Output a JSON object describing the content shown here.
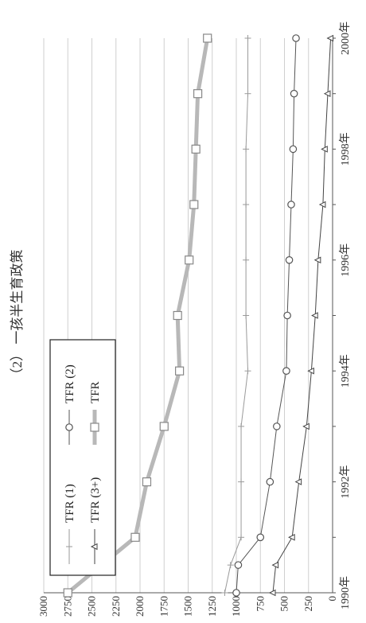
{
  "chart_data": {
    "type": "line",
    "title": "（2） 一孩半生育政策",
    "x": [
      "1990年",
      "1991年",
      "1992年",
      "1993年",
      "1994年",
      "1995年",
      "1996年",
      "1997年",
      "1998年",
      "1999年",
      "2000年"
    ],
    "x_ticks_labeled": [
      "1990年",
      "1992年",
      "1994年",
      "1996年",
      "1998年",
      "2000年"
    ],
    "x_values": [
      1990,
      1991,
      1992,
      1993,
      1994,
      1995,
      1996,
      1997,
      1998,
      1999,
      2000
    ],
    "y_ticks": [
      "0",
      "250",
      "500",
      "750",
      "1000",
      "1250",
      "1500",
      "1750",
      "2000",
      "2250",
      "2500",
      "2750",
      "3000"
    ],
    "ylim": [
      0,
      3000
    ],
    "grid": true,
    "legend_position": "top-left",
    "legend_columns": [
      [
        "TFR (1)",
        "TFR (3+)"
      ],
      [
        "TFR (2)",
        "TFR"
      ]
    ],
    "rotation": "rotated 90 degrees counter-clockwise",
    "series": [
      {
        "name": "TFR (1)",
        "marker": "plus",
        "width": 1,
        "color": "#9a9a9a",
        "x": [
          1990,
          1990.5,
          1991,
          1992,
          1993,
          1994,
          1995,
          1996,
          1997,
          1998,
          1999,
          2000
        ],
        "values": [
          1120,
          1060,
          950,
          950,
          950,
          880,
          900,
          900,
          900,
          900,
          880,
          880
        ]
      },
      {
        "name": "TFR (2)",
        "marker": "circle",
        "width": 1,
        "color": "#555555",
        "x": [
          1990,
          1990.5,
          1991,
          1992,
          1993,
          1994,
          1995,
          1996,
          1997,
          1998,
          1999,
          2000
        ],
        "values": [
          1000,
          980,
          750,
          650,
          580,
          480,
          470,
          450,
          430,
          410,
          400,
          380
        ]
      },
      {
        "name": "TFR (3+)",
        "marker": "triangle",
        "width": 1,
        "color": "#444444",
        "x": [
          1990,
          1990.5,
          1991,
          1992,
          1993,
          1994,
          1995,
          1996,
          1997,
          1998,
          1999,
          2000
        ],
        "values": [
          620,
          590,
          420,
          350,
          270,
          220,
          180,
          150,
          100,
          80,
          50,
          20
        ]
      },
      {
        "name": "TFR",
        "marker": "square",
        "width": 5,
        "color": "#b8b8b8",
        "x": [
          1990,
          1991,
          1992,
          1993,
          1994,
          1995,
          1996,
          1997,
          1998,
          1999,
          2000
        ],
        "values": [
          2750,
          2050,
          1930,
          1750,
          1590,
          1610,
          1490,
          1440,
          1420,
          1400,
          1300
        ]
      }
    ]
  }
}
